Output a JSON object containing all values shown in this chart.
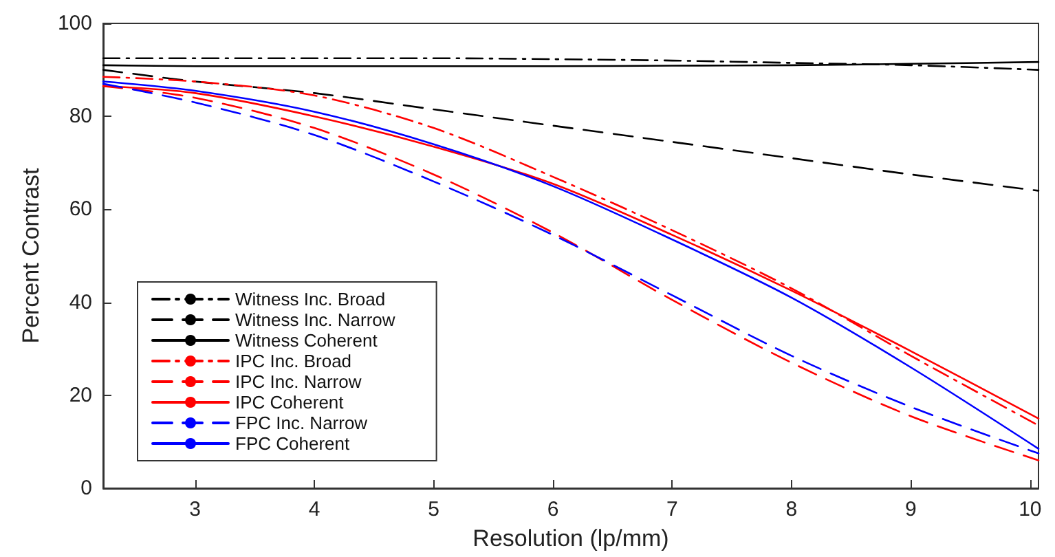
{
  "chart_data": {
    "type": "line",
    "xlabel": "Resolution (lp/mm)",
    "ylabel": "Percent Contrast",
    "x": [
      2.23,
      3,
      4,
      5,
      6,
      7,
      8,
      9,
      10.07
    ],
    "series": [
      {
        "name": "Witness Inc. Broad",
        "color": "#000000",
        "line_style": "dashdot",
        "values": [
          92.5,
          92.5,
          92.5,
          92.5,
          92.3,
          92,
          91.5,
          91,
          90
        ]
      },
      {
        "name": "Witness Inc. Narrow",
        "color": "#000000",
        "line_style": "dashed",
        "values": [
          90,
          87.5,
          85,
          81.5,
          78,
          74.5,
          71,
          67.5,
          64
        ]
      },
      {
        "name": "Witness Coherent",
        "color": "#000000",
        "line_style": "solid",
        "values": [
          91,
          90.8,
          90.8,
          90.8,
          90.8,
          90.9,
          91,
          91.3,
          91.7
        ]
      },
      {
        "name": "IPC Inc. Broad",
        "color": "#ff0000",
        "line_style": "dashdot",
        "values": [
          88.5,
          87.5,
          84.5,
          77.5,
          67,
          55.5,
          43,
          28.5,
          13.5
        ]
      },
      {
        "name": "IPC Inc. Narrow",
        "color": "#ff0000",
        "line_style": "dashed",
        "values": [
          86.5,
          84,
          77.5,
          67.5,
          55,
          40.5,
          27,
          15.5,
          6
        ]
      },
      {
        "name": "IPC Coherent",
        "color": "#ff0000",
        "line_style": "solid",
        "values": [
          86.5,
          85,
          80,
          73.5,
          65.5,
          54.5,
          42.5,
          29.5,
          15
        ]
      },
      {
        "name": "FPC Inc. Narrow",
        "color": "#0000ff",
        "line_style": "dashed",
        "values": [
          87,
          83,
          76,
          66,
          54.5,
          41.5,
          28.5,
          17.5,
          7.5
        ]
      },
      {
        "name": "FPC Coherent",
        "color": "#0000ff",
        "line_style": "solid",
        "values": [
          87.5,
          85.5,
          81,
          74,
          65,
          53.5,
          41,
          26,
          8.5
        ]
      }
    ],
    "xlim": [
      2.23,
      10.07
    ],
    "xticks": [
      3,
      4,
      5,
      6,
      7,
      8,
      9,
      10
    ],
    "ylim": [
      0,
      100
    ],
    "yticks": [
      0,
      20,
      40,
      60,
      80,
      100
    ],
    "grid": false,
    "legend": "bottom left",
    "marker": "none"
  }
}
